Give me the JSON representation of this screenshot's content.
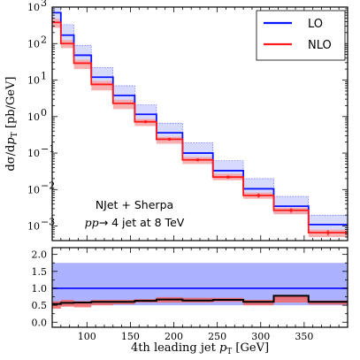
{
  "chart_data": {
    "type": "line",
    "plot_style": "step-histogram-with-ratio-panel",
    "xlabel_text": "4th leading jet",
    "xlabel_var": "p",
    "xlabel_sub": "T",
    "xlabel_unit": "[GeV]",
    "ylabel_prefix": "dσ/d",
    "ylabel_var": "p",
    "ylabel_sub": "T",
    "ylabel_unit": "[pb/GeV]",
    "annotation_line1": "NJet + Sherpa",
    "annotation_line2_var": "pp",
    "annotation_line2_rest": "→ 4 jet at 8 TeV",
    "xlim": [
      60,
      400
    ],
    "main_panel": {
      "yscale": "log",
      "ylim": [
        0.0004,
        1000
      ],
      "ytick_labels": [
        "10",
        "10",
        "10",
        "10",
        "10",
        "10",
        "10"
      ],
      "ytick_exponents": [
        "−3",
        "−2",
        "−1",
        "0",
        "1",
        "2",
        "3"
      ],
      "ytick_values": [
        0.001,
        0.01,
        0.1,
        1,
        10,
        100,
        1000
      ]
    },
    "ratio_panel": {
      "ylim": [
        -0.15,
        2.2
      ],
      "ytick_labels": [
        "0.0",
        "0.5",
        "1.0",
        "1.5",
        "2.0"
      ],
      "ytick_values": [
        0,
        0.5,
        1.0,
        1.5,
        2.0
      ],
      "band_range": [
        0.5,
        1.75
      ],
      "ref_line": 1.0
    },
    "xtick_labels": [
      "100",
      "150",
      "200",
      "250",
      "300",
      "350"
    ],
    "xtick_values": [
      100,
      150,
      200,
      250,
      300,
      350
    ],
    "bin_edges": [
      60,
      70,
      85,
      105,
      130,
      155,
      180,
      210,
      245,
      280,
      315,
      355,
      400
    ],
    "legend_position": "top-right",
    "series": [
      {
        "name": "LO",
        "color": "#0a14ff",
        "band_color": "#c6cbff",
        "values": [
          700,
          170,
          48,
          12,
          3.8,
          1.15,
          0.36,
          0.1,
          0.033,
          0.0105,
          0.0035,
          0.0011
        ],
        "band_low": [
          400,
          100,
          30,
          8,
          2.4,
          0.72,
          0.22,
          0.065,
          0.021,
          0.0067,
          0.0022,
          0.0007
        ],
        "band_high": [
          1300,
          330,
          90,
          22,
          7,
          2.1,
          0.66,
          0.19,
          0.062,
          0.02,
          0.0065,
          0.002
        ],
        "ratio": [
          0.54,
          0.57,
          0.58,
          0.6,
          0.6,
          0.63,
          0.67,
          0.64,
          0.66,
          0.6,
          0.78,
          0.6
        ]
      },
      {
        "name": "NLO",
        "color": "#ff1a1a",
        "band_color": "#f7a3a3",
        "values": [
          380,
          100,
          29,
          7.6,
          2.3,
          0.72,
          0.24,
          0.065,
          0.022,
          0.0069,
          0.0027,
          0.00066
        ],
        "band_low": [
          270,
          75,
          20,
          5.2,
          1.6,
          0.55,
          0.18,
          0.05,
          0.018,
          0.0056,
          0.0021,
          0.0005
        ],
        "band_high": [
          480,
          125,
          36,
          9.5,
          2.9,
          0.86,
          0.28,
          0.078,
          0.027,
          0.0083,
          0.0032,
          0.0008
        ],
        "errors": [
          0,
          0,
          0,
          0,
          0,
          0.03,
          0.015,
          0.004,
          0.002,
          0.0009,
          0.0004,
          0.00012
        ],
        "ratio_low": [
          0.4,
          0.46,
          0.44,
          0.5,
          0.53,
          0.58,
          0.58,
          0.58,
          0.6,
          0.5,
          0.58,
          0.52
        ],
        "ratio_high": [
          0.62,
          0.66,
          0.62,
          0.66,
          0.66,
          0.68,
          0.74,
          0.72,
          0.72,
          0.66,
          0.78,
          0.64
        ]
      }
    ]
  }
}
